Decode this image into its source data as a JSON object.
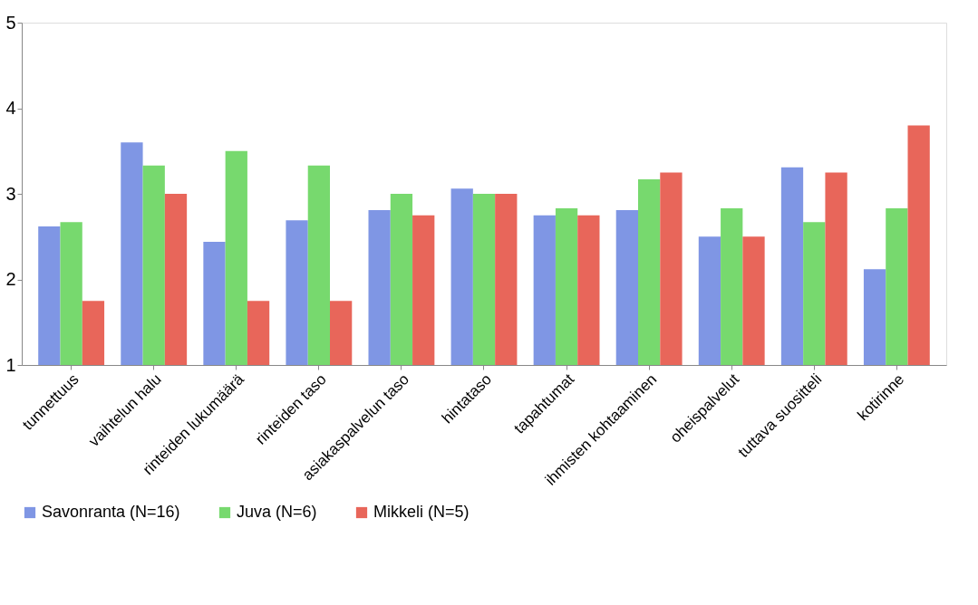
{
  "chart_data": {
    "type": "bar",
    "categories": [
      "tunnettuus",
      "vaihtelun halu",
      "rinteiden lukumäärä",
      "rinteiden taso",
      "asiakaspalvelun taso",
      "hintataso",
      "tapahtumat",
      "ihmisten kohtaaminen",
      "oheispalvelut",
      "tuttava suositteli",
      "kotirinne"
    ],
    "series": [
      {
        "name": "Savonranta (N=16)",
        "color": "#7f96e4",
        "values": [
          2.62,
          3.6,
          2.44,
          2.69,
          2.81,
          3.06,
          2.75,
          2.81,
          2.5,
          3.31,
          2.12
        ]
      },
      {
        "name": "Juva (N=6)",
        "color": "#77d96e",
        "values": [
          2.67,
          3.33,
          3.5,
          3.33,
          3.0,
          3.0,
          2.83,
          3.17,
          2.83,
          2.67,
          2.83
        ]
      },
      {
        "name": "Mikkeli (N=5)",
        "color": "#e8665a",
        "values": [
          1.75,
          3.0,
          1.75,
          1.75,
          2.75,
          3.0,
          2.75,
          3.25,
          2.5,
          3.25,
          3.8
        ]
      }
    ],
    "ylim": [
      1,
      5
    ],
    "yticks": [
      1,
      2,
      3,
      4,
      5
    ],
    "grid": false,
    "legend": "bottom"
  }
}
